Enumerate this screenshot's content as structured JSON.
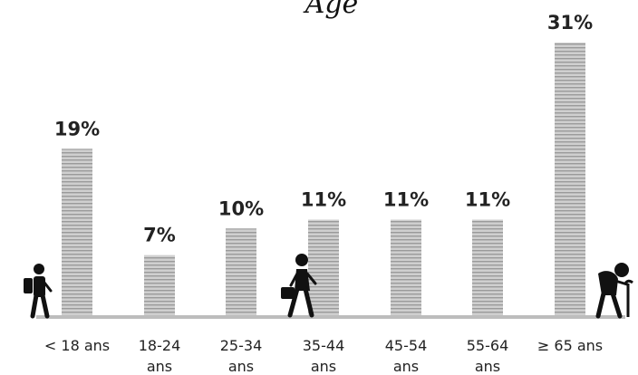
{
  "chart_data": {
    "type": "bar",
    "title": "Âge",
    "categories": [
      [
        "< 18 ans"
      ],
      [
        "18-24",
        "ans"
      ],
      [
        "25-34",
        "ans"
      ],
      [
        "35-44",
        "ans"
      ],
      [
        "45-54",
        "ans"
      ],
      [
        "55-64",
        "ans"
      ],
      [
        "≥ 65 ans"
      ]
    ],
    "values": [
      19,
      7,
      10,
      11,
      11,
      11,
      31
    ],
    "value_labels": [
      "19%",
      "7%",
      "10%",
      "11%",
      "11%",
      "11%",
      "31%"
    ],
    "unit": "%",
    "ylim": [
      0,
      31
    ],
    "grid": false,
    "legend": "none",
    "colors": {
      "bar": "#cfcfcf",
      "stripe": "#9a9a9a",
      "axis": "#bdbdbd",
      "icon": "#111111"
    },
    "icons": [
      "child-with-backpack-icon",
      "walking-person-with-briefcase-icon",
      "elderly-person-with-cane-icon"
    ]
  }
}
